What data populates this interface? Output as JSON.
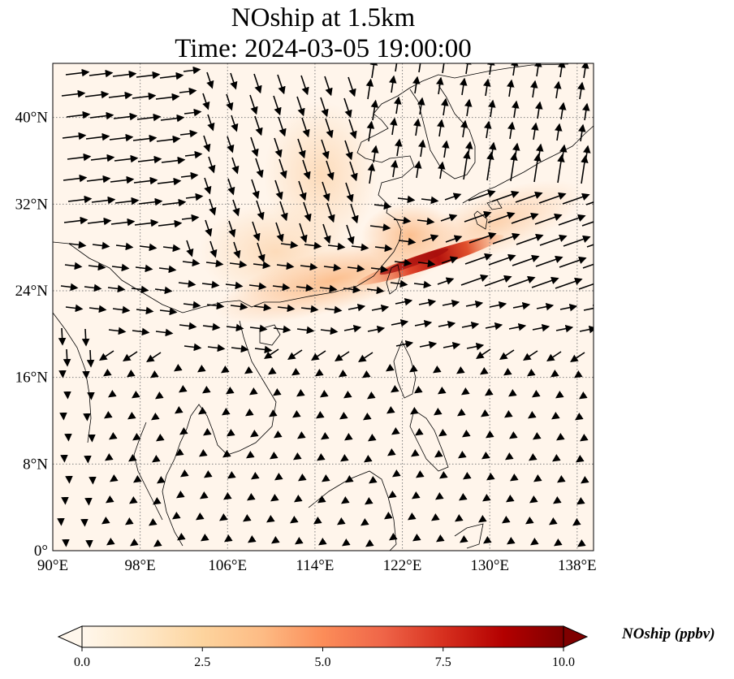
{
  "title": {
    "line1": "NOship at 1.5km",
    "line2": "Time: 2024-03-05 19:00:00"
  },
  "map": {
    "lon_range": [
      90,
      139.5
    ],
    "lat_range": [
      0,
      45
    ],
    "lon_ticks": [
      {
        "value": 90,
        "label": "90°E"
      },
      {
        "value": 98,
        "label": "98°E"
      },
      {
        "value": 106,
        "label": "106°E"
      },
      {
        "value": 114,
        "label": "114°E"
      },
      {
        "value": 122,
        "label": "122°E"
      },
      {
        "value": 130,
        "label": "130°E"
      },
      {
        "value": 138,
        "label": "138°E"
      }
    ],
    "lat_ticks": [
      {
        "value": 0,
        "label": "0°"
      },
      {
        "value": 8,
        "label": "8°N"
      },
      {
        "value": 16,
        "label": "16°N"
      },
      {
        "value": 24,
        "label": "24°N"
      },
      {
        "value": 32,
        "label": "32°N"
      },
      {
        "value": 40,
        "label": "40°N"
      }
    ],
    "gridlines": true,
    "background_color": "#fff5eb",
    "plume_colors": [
      "#fde0c2",
      "#fdc08b",
      "#f4874a",
      "#d7301f",
      "#990000"
    ]
  },
  "colorbar": {
    "label": "NOship (ppbv)",
    "min": 0.0,
    "max": 10.0,
    "extend": "both",
    "cmap": "OrRd",
    "tick_values": [
      0.0,
      2.5,
      5.0,
      7.5,
      10.0
    ],
    "tick_labels": [
      "0.0",
      "2.5",
      "5.0",
      "7.5",
      "10.0"
    ],
    "colors": [
      "#fff7ec",
      "#fee8c8",
      "#fdd49e",
      "#fdbb84",
      "#fc8d59",
      "#ef6548",
      "#d7301f",
      "#b30000",
      "#7f0000"
    ]
  }
}
